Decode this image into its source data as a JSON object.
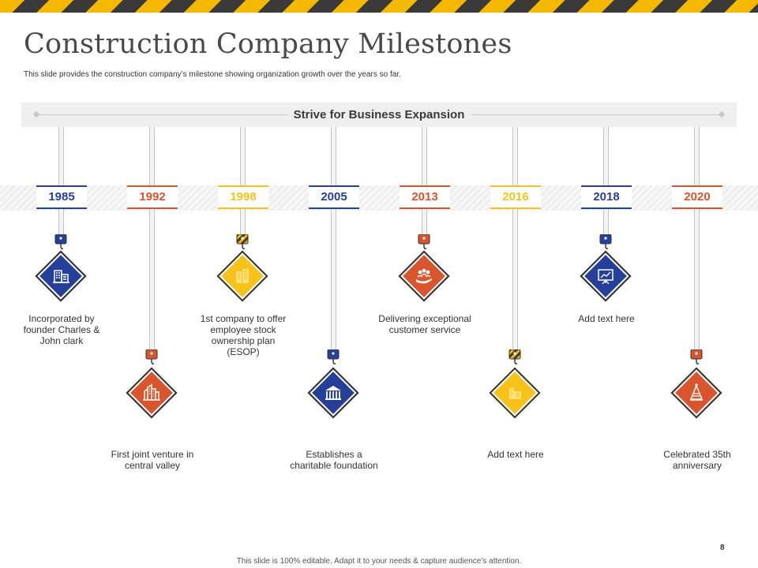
{
  "slide": {
    "title": "Construction Company Milestones",
    "subtitle": "This slide provides the construction company’s milestone showing organization growth over the years so far.",
    "banner": "Strive for Business Expansion",
    "page_number": "8",
    "footer": "This slide is 100% editable. Adapt it to your needs & capture audience’s attention."
  },
  "colors": {
    "blue": "#25409a",
    "orange": "#d9552e",
    "yellow": "#f7c21a",
    "hazard_dark": "#3a3a3a",
    "hazard_yellow": "#f5b800"
  },
  "milestones": [
    {
      "year": "1985",
      "color": "blue",
      "row": "upper",
      "icon": "office-building-icon",
      "caption": "Incorporated by founder Charles & John clark"
    },
    {
      "year": "1992",
      "color": "orange",
      "row": "lower",
      "icon": "city-buildings-icon",
      "caption": "First joint venture in central valley"
    },
    {
      "year": "1998",
      "color": "yellow",
      "row": "upper",
      "icon": "buildings-icon",
      "caption": "1st company to offer employee stock ownership plan (ESOP)"
    },
    {
      "year": "2005",
      "color": "blue",
      "row": "lower",
      "icon": "foundation-building-icon",
      "caption": "Establishes a charitable foundation"
    },
    {
      "year": "2013",
      "color": "orange",
      "row": "upper",
      "icon": "customer-service-icon",
      "caption": "Delivering exceptional customer service"
    },
    {
      "year": "2016",
      "color": "yellow",
      "row": "lower",
      "icon": "building-growth-icon",
      "caption": "Add text here"
    },
    {
      "year": "2018",
      "color": "blue",
      "row": "upper",
      "icon": "presentation-board-icon",
      "caption": "Add text here"
    },
    {
      "year": "2020",
      "color": "orange",
      "row": "lower",
      "icon": "celebration-hat-icon",
      "caption": "Celebrated 35th anniversary"
    }
  ]
}
